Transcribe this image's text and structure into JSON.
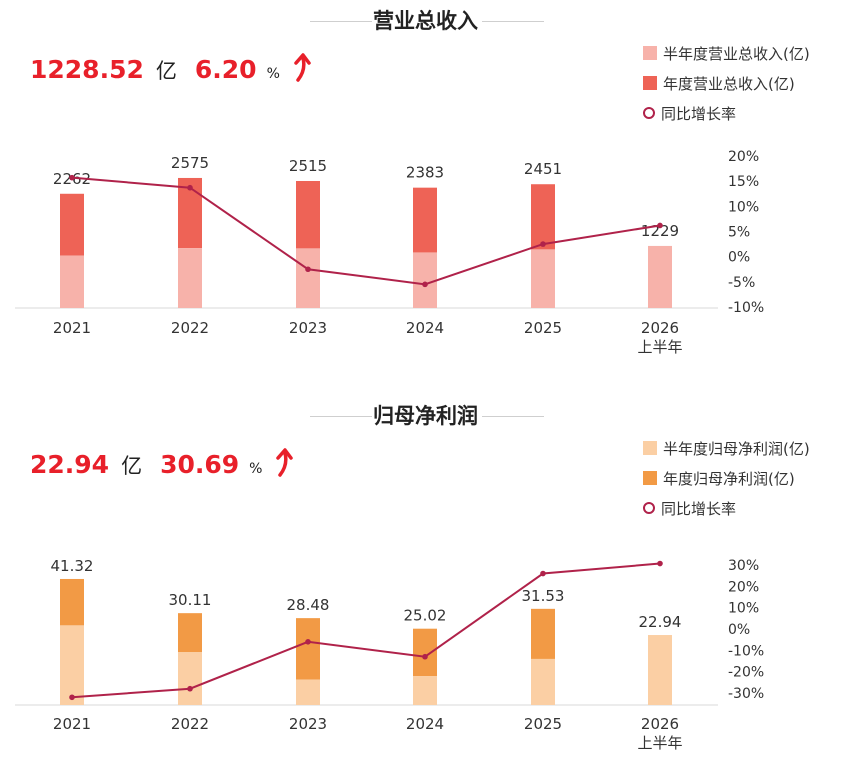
{
  "panels": [
    {
      "title": "营业总收入",
      "headline": {
        "amount": "1228.52",
        "amount_unit": "亿",
        "growth": "6.20",
        "growth_unit": "%"
      },
      "legend": {
        "half": "半年度营业总收入(亿)",
        "annual": "年度营业总收入(亿)",
        "rate": "同比增长率"
      }
    },
    {
      "title": "归母净利润",
      "headline": {
        "amount": "22.94",
        "amount_unit": "亿",
        "growth": "30.69",
        "growth_unit": "%"
      },
      "legend": {
        "half": "半年度归母净利润(亿)",
        "annual": "年度归母净利润(亿)",
        "rate": "同比增长率"
      }
    }
  ],
  "chart_data": [
    {
      "type": "bar",
      "title": "营业总收入",
      "categories": [
        "2021",
        "2022",
        "2023",
        "2024",
        "2025",
        "2026\n上半年"
      ],
      "series": [
        {
          "name": "半年度营业总收入(亿)",
          "type": "bar",
          "values": [
            1040,
            1185,
            1180,
            1100,
            1160,
            1229
          ]
        },
        {
          "name": "年度营业总收入(亿)",
          "type": "bar",
          "values": [
            2262,
            2575,
            2515,
            2383,
            2451,
            null
          ]
        },
        {
          "name": "同比增长率",
          "type": "line",
          "axis": "right",
          "values": [
            15.7,
            13.7,
            -2.5,
            -5.5,
            2.5,
            6.2
          ]
        }
      ],
      "data_labels": [
        "2262",
        "2575",
        "2515",
        "2383",
        "2451",
        "1229"
      ],
      "y_right": {
        "ticks": [
          "20%",
          "15%",
          "10%",
          "5%",
          "0%",
          "-5%",
          "-10%"
        ],
        "range": [
          -10,
          20
        ]
      },
      "colors": {
        "half": "#f7b2aa",
        "annual": "#ee6356",
        "line": "#b0224a"
      }
    },
    {
      "type": "bar",
      "title": "归母净利润",
      "categories": [
        "2021",
        "2022",
        "2023",
        "2024",
        "2025",
        "2026\n上半年"
      ],
      "series": [
        {
          "name": "半年度归母净利润(亿)",
          "type": "bar",
          "values": [
            26.1,
            17.3,
            8.3,
            9.5,
            15.1,
            22.94
          ]
        },
        {
          "name": "年度归母净利润(亿)",
          "type": "bar",
          "values": [
            41.32,
            30.11,
            28.48,
            25.02,
            31.53,
            null
          ]
        },
        {
          "name": "同比增长率",
          "type": "line",
          "axis": "right",
          "values": [
            -32,
            -28,
            -6,
            -13,
            26,
            30.69
          ]
        }
      ],
      "data_labels": [
        "41.32",
        "30.11",
        "28.48",
        "25.02",
        "31.53",
        "22.94"
      ],
      "y_right": {
        "ticks": [
          "30%",
          "20%",
          "10%",
          "0%",
          "-10%",
          "-20%",
          "-30%"
        ],
        "range": [
          -30,
          30
        ]
      },
      "colors": {
        "half": "#fbcfa4",
        "annual": "#f29a45",
        "line": "#b0224a"
      }
    }
  ]
}
